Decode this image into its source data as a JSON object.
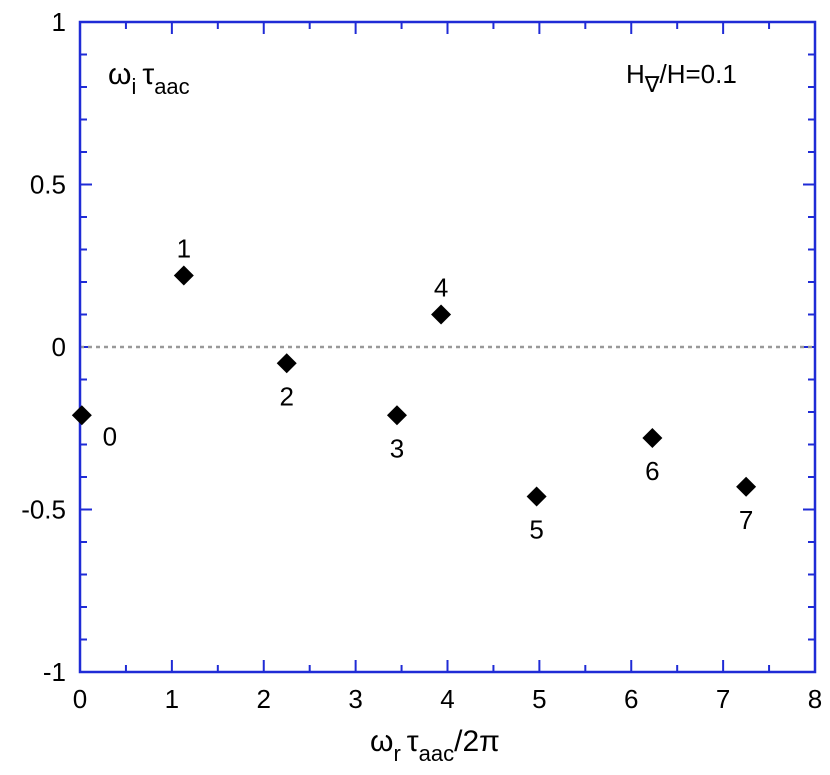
{
  "chart_data": {
    "type": "scatter",
    "marker": "diamond",
    "xlim": [
      0,
      8
    ],
    "ylim": [
      -1,
      1
    ],
    "x_ticks": [
      0,
      1,
      2,
      3,
      4,
      5,
      6,
      7,
      8
    ],
    "x_tick_labels": [
      "0",
      "1",
      "2",
      "3",
      "4",
      "5",
      "6",
      "7",
      "8"
    ],
    "y_ticks": [
      -1,
      -0.5,
      0,
      0.5,
      1
    ],
    "y_tick_labels": [
      "-1",
      "-0.5",
      "0",
      "0.5",
      "1"
    ],
    "reference_line": {
      "y": 0,
      "style": "dotted",
      "color": "#999999"
    },
    "grid": false,
    "axis_color": "#1f2bd6",
    "marker_color": "#000000",
    "points": [
      {
        "label": "0",
        "x": 0.02,
        "y": -0.21
      },
      {
        "label": "1",
        "x": 1.13,
        "y": 0.22
      },
      {
        "label": "2",
        "x": 2.25,
        "y": -0.05
      },
      {
        "label": "3",
        "x": 3.45,
        "y": -0.21
      },
      {
        "label": "4",
        "x": 3.93,
        "y": 0.1
      },
      {
        "label": "5",
        "x": 4.97,
        "y": -0.46
      },
      {
        "label": "6",
        "x": 6.23,
        "y": -0.28
      },
      {
        "label": "7",
        "x": 7.25,
        "y": -0.43
      }
    ],
    "ylabel": {
      "main1": "ω",
      "sub1": "i",
      "main2": "τ",
      "sub2": "aac"
    },
    "xlabel": {
      "main1": "ω",
      "sub1": "r",
      "main2": "τ",
      "sub2": "aac",
      "tail": "/2π"
    },
    "annotation": {
      "main": "H",
      "sub": "∇",
      "tail": "/H=0.1"
    }
  }
}
